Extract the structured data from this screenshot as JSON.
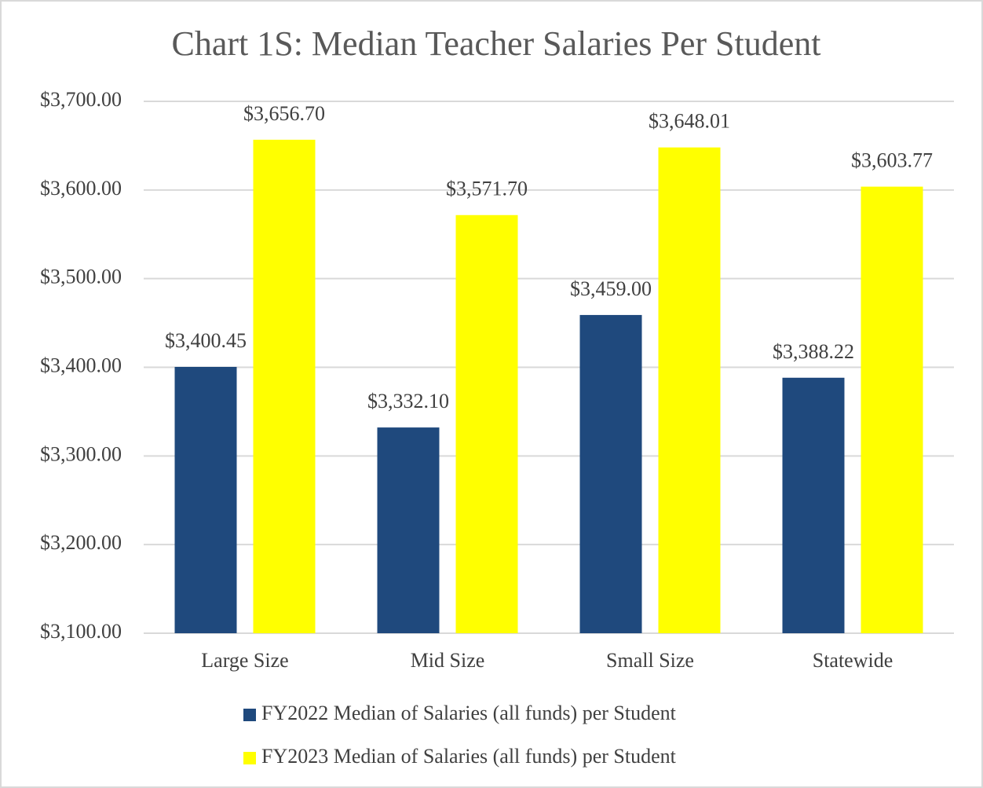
{
  "chart_data": {
    "type": "bar",
    "title": "Chart 1S: Median Teacher Salaries Per Student",
    "categories": [
      "Large Size",
      "Mid Size",
      "Small Size",
      "Statewide"
    ],
    "series": [
      {
        "name": "FY2022 Median of Salaries (all funds) per Student",
        "color": "#1f497d",
        "values": [
          3400.45,
          3332.1,
          3459.0,
          3388.22
        ],
        "value_labels": [
          "$3,400.45",
          "$3,332.10",
          "$3,459.00",
          "$3,388.22"
        ]
      },
      {
        "name": "FY2023 Median of Salaries (all funds) per Student",
        "color": "#ffff00",
        "values": [
          3656.7,
          3571.7,
          3648.01,
          3603.77
        ],
        "value_labels": [
          "$3,656.70",
          "$3,571.70",
          "$3,648.01",
          "$3,603.77"
        ]
      }
    ],
    "ylim": [
      3100,
      3700
    ],
    "yticks": [
      {
        "value": 3100,
        "label": "$3,100.00"
      },
      {
        "value": 3200,
        "label": "$3,200.00"
      },
      {
        "value": 3300,
        "label": "$3,300.00"
      },
      {
        "value": 3400,
        "label": "$3,400.00"
      },
      {
        "value": 3500,
        "label": "$3,500.00"
      },
      {
        "value": 3600,
        "label": "$3,600.00"
      },
      {
        "value": 3700,
        "label": "$3,700.00"
      }
    ],
    "grid": true,
    "legend": "bottom"
  }
}
